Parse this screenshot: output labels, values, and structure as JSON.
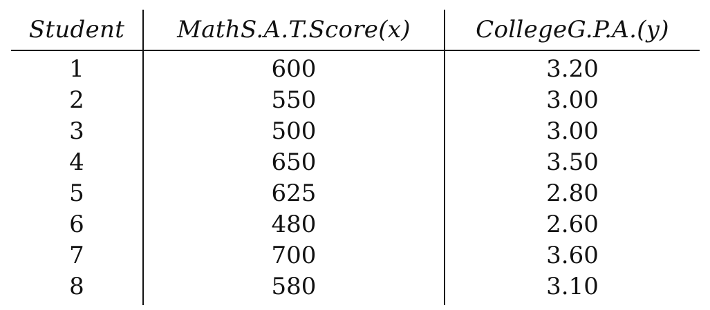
{
  "table": {
    "headers": {
      "student": "Student",
      "sat": "MathS.A.T.Score(x)",
      "gpa": "CollegeG.P.A.(y)"
    },
    "rows": [
      {
        "student": "1",
        "sat": "600",
        "gpa": "3.20"
      },
      {
        "student": "2",
        "sat": "550",
        "gpa": "3.00"
      },
      {
        "student": "3",
        "sat": "500",
        "gpa": "3.00"
      },
      {
        "student": "4",
        "sat": "650",
        "gpa": "3.50"
      },
      {
        "student": "5",
        "sat": "625",
        "gpa": "2.80"
      },
      {
        "student": "6",
        "sat": "480",
        "gpa": "2.60"
      },
      {
        "student": "7",
        "sat": "700",
        "gpa": "3.60"
      },
      {
        "student": "8",
        "sat": "580",
        "gpa": "3.10"
      }
    ]
  }
}
